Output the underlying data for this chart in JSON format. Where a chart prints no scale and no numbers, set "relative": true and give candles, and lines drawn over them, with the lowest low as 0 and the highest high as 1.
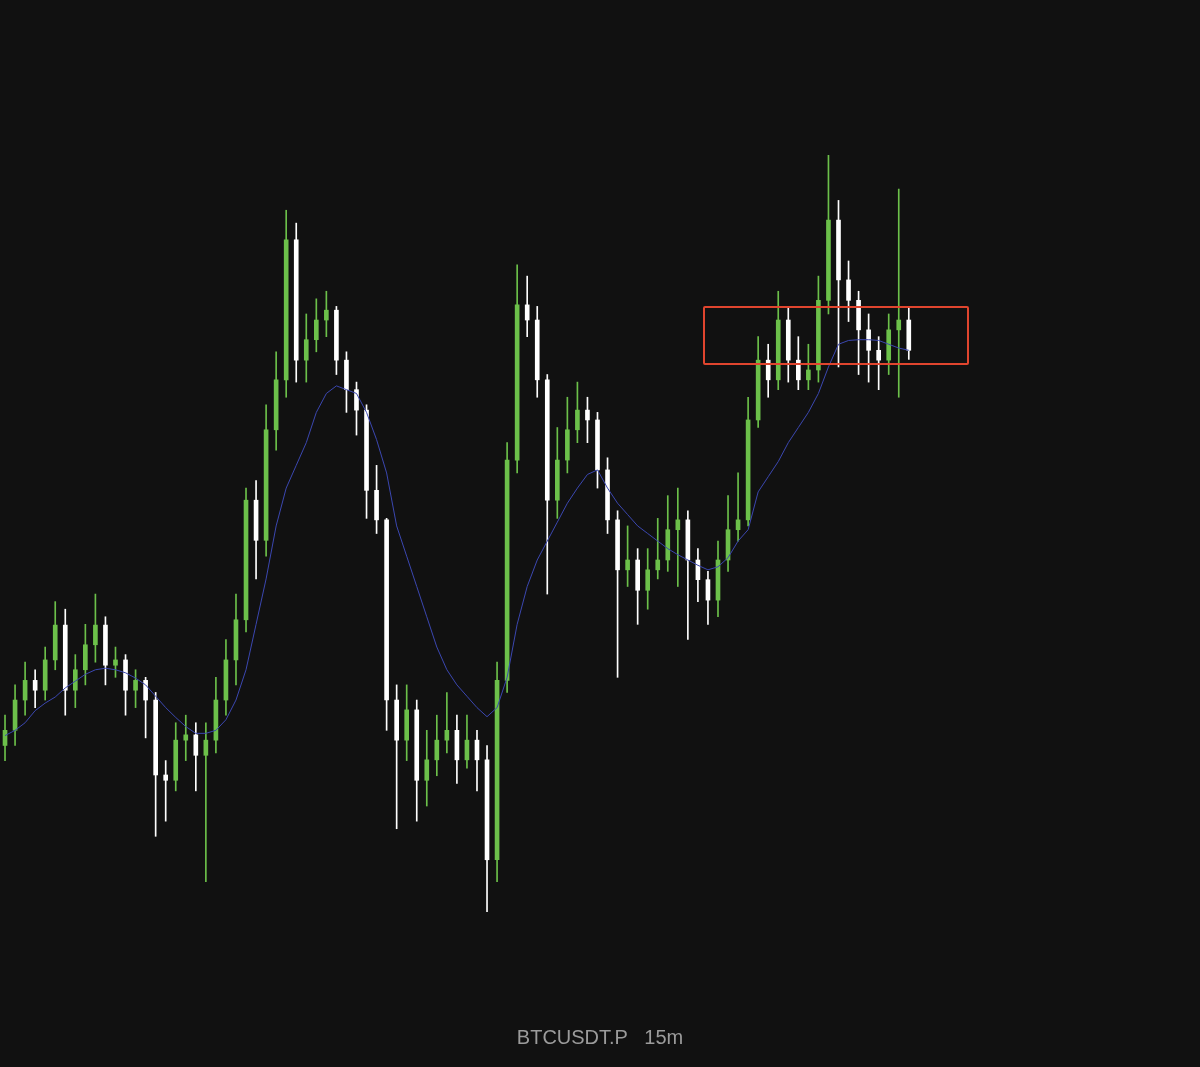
{
  "chart_data": {
    "type": "candlestick",
    "title": "BTCUSDT.P   15m",
    "relative": true,
    "categories": [
      null,
      null,
      null,
      null,
      null,
      null,
      null,
      null,
      null,
      null,
      null,
      null,
      null,
      null,
      null,
      null,
      null,
      null,
      null,
      null,
      null,
      null,
      null,
      null,
      null,
      null,
      null,
      null,
      null,
      null,
      null,
      null,
      null,
      null,
      null,
      null,
      null,
      null,
      null,
      null,
      null,
      null,
      null,
      null,
      null,
      null,
      null,
      null,
      null,
      null,
      null,
      null,
      null,
      null,
      null,
      null,
      null,
      null,
      null,
      null,
      null,
      null,
      null,
      null,
      null,
      null,
      null,
      null,
      null,
      null,
      null,
      null,
      null,
      null,
      null,
      null,
      null,
      null,
      null,
      null,
      null,
      null,
      null,
      null,
      null,
      null,
      null,
      null,
      null,
      null,
      null
    ],
    "ohlc": [
      [
        0.22,
        0.26,
        0.2,
        0.24
      ],
      [
        0.24,
        0.3,
        0.22,
        0.28
      ],
      [
        0.28,
        0.33,
        0.26,
        0.306
      ],
      [
        0.306,
        0.32,
        0.27,
        0.293
      ],
      [
        0.293,
        0.35,
        0.28,
        0.333
      ],
      [
        0.333,
        0.41,
        0.32,
        0.379
      ],
      [
        0.379,
        0.4,
        0.26,
        0.293
      ],
      [
        0.293,
        0.34,
        0.27,
        0.32
      ],
      [
        0.32,
        0.38,
        0.3,
        0.353
      ],
      [
        0.353,
        0.42,
        0.33,
        0.379
      ],
      [
        0.379,
        0.39,
        0.3,
        0.326
      ],
      [
        0.326,
        0.35,
        0.31,
        0.333
      ],
      [
        0.333,
        0.34,
        0.26,
        0.293
      ],
      [
        0.293,
        0.32,
        0.27,
        0.306
      ],
      [
        0.306,
        0.31,
        0.23,
        0.28
      ],
      [
        0.28,
        0.29,
        0.1,
        0.181
      ],
      [
        0.181,
        0.2,
        0.12,
        0.174
      ],
      [
        0.174,
        0.25,
        0.16,
        0.227
      ],
      [
        0.227,
        0.26,
        0.2,
        0.234
      ],
      [
        0.234,
        0.25,
        0.16,
        0.207
      ],
      [
        0.207,
        0.25,
        0.04,
        0.227
      ],
      [
        0.227,
        0.31,
        0.21,
        0.28
      ],
      [
        0.28,
        0.36,
        0.26,
        0.333
      ],
      [
        0.333,
        0.42,
        0.3,
        0.386
      ],
      [
        0.386,
        0.56,
        0.37,
        0.544
      ],
      [
        0.544,
        0.57,
        0.44,
        0.491
      ],
      [
        0.491,
        0.67,
        0.47,
        0.637
      ],
      [
        0.637,
        0.74,
        0.61,
        0.703
      ],
      [
        0.703,
        0.927,
        0.68,
        0.888
      ],
      [
        0.888,
        0.91,
        0.7,
        0.729
      ],
      [
        0.729,
        0.79,
        0.7,
        0.756
      ],
      [
        0.756,
        0.81,
        0.74,
        0.782
      ],
      [
        0.782,
        0.82,
        0.76,
        0.795
      ],
      [
        0.795,
        0.8,
        0.71,
        0.729
      ],
      [
        0.729,
        0.74,
        0.66,
        0.69
      ],
      [
        0.69,
        0.7,
        0.63,
        0.663
      ],
      [
        0.663,
        0.67,
        0.52,
        0.557
      ],
      [
        0.557,
        0.59,
        0.5,
        0.518
      ],
      [
        0.518,
        0.52,
        0.24,
        0.28
      ],
      [
        0.28,
        0.3,
        0.11,
        0.227
      ],
      [
        0.227,
        0.3,
        0.2,
        0.267
      ],
      [
        0.267,
        0.28,
        0.12,
        0.174
      ],
      [
        0.174,
        0.24,
        0.14,
        0.201
      ],
      [
        0.201,
        0.26,
        0.18,
        0.227
      ],
      [
        0.227,
        0.29,
        0.21,
        0.24
      ],
      [
        0.24,
        0.26,
        0.17,
        0.201
      ],
      [
        0.201,
        0.26,
        0.19,
        0.227
      ],
      [
        0.227,
        0.24,
        0.16,
        0.201
      ],
      [
        0.201,
        0.22,
        0,
        0.069
      ],
      [
        0.069,
        0.33,
        0.04,
        0.306
      ],
      [
        0.306,
        0.62,
        0.29,
        0.597
      ],
      [
        0.597,
        0.855,
        0.58,
        0.802
      ],
      [
        0.802,
        0.84,
        0.76,
        0.782
      ],
      [
        0.782,
        0.8,
        0.68,
        0.703
      ],
      [
        0.703,
        0.71,
        0.42,
        0.544
      ],
      [
        0.544,
        0.64,
        0.52,
        0.597
      ],
      [
        0.597,
        0.68,
        0.58,
        0.637
      ],
      [
        0.637,
        0.7,
        0.62,
        0.663
      ],
      [
        0.663,
        0.68,
        0.62,
        0.65
      ],
      [
        0.65,
        0.66,
        0.56,
        0.584
      ],
      [
        0.584,
        0.6,
        0.5,
        0.518
      ],
      [
        0.518,
        0.53,
        0.31,
        0.452
      ],
      [
        0.452,
        0.51,
        0.43,
        0.465
      ],
      [
        0.465,
        0.48,
        0.38,
        0.425
      ],
      [
        0.425,
        0.48,
        0.4,
        0.452
      ],
      [
        0.452,
        0.52,
        0.44,
        0.465
      ],
      [
        0.465,
        0.55,
        0.45,
        0.505
      ],
      [
        0.505,
        0.56,
        0.43,
        0.518
      ],
      [
        0.518,
        0.53,
        0.36,
        0.465
      ],
      [
        0.465,
        0.48,
        0.41,
        0.439
      ],
      [
        0.439,
        0.45,
        0.38,
        0.412
      ],
      [
        0.412,
        0.49,
        0.39,
        0.465
      ],
      [
        0.465,
        0.55,
        0.45,
        0.505
      ],
      [
        0.505,
        0.58,
        0.49,
        0.518
      ],
      [
        0.518,
        0.68,
        0.51,
        0.65
      ],
      [
        0.65,
        0.76,
        0.64,
        0.729
      ],
      [
        0.729,
        0.75,
        0.68,
        0.703
      ],
      [
        0.703,
        0.82,
        0.69,
        0.782
      ],
      [
        0.782,
        0.8,
        0.7,
        0.729
      ],
      [
        0.729,
        0.76,
        0.69,
        0.703
      ],
      [
        0.703,
        0.75,
        0.69,
        0.716
      ],
      [
        0.716,
        0.84,
        0.7,
        0.808
      ],
      [
        0.808,
        1,
        0.79,
        0.914
      ],
      [
        0.914,
        0.94,
        0.72,
        0.835
      ],
      [
        0.835,
        0.86,
        0.78,
        0.808
      ],
      [
        0.808,
        0.82,
        0.71,
        0.769
      ],
      [
        0.769,
        0.79,
        0.7,
        0.742
      ],
      [
        0.742,
        0.76,
        0.69,
        0.729
      ],
      [
        0.729,
        0.79,
        0.71,
        0.769
      ],
      [
        0.769,
        0.955,
        0.68,
        0.782
      ],
      [
        0.782,
        0.8,
        0.73,
        0.742
      ]
    ],
    "colors": [
      "#6cc04a",
      "#6cc04a",
      "#6cc04a",
      "#ffffff",
      "#6cc04a",
      "#6cc04a",
      "#ffffff",
      "#6cc04a",
      "#6cc04a",
      "#6cc04a",
      "#ffffff",
      "#6cc04a",
      "#ffffff",
      "#6cc04a",
      "#ffffff",
      "#ffffff",
      "#ffffff",
      "#6cc04a",
      "#6cc04a",
      "#ffffff",
      "#6cc04a",
      "#6cc04a",
      "#6cc04a",
      "#6cc04a",
      "#6cc04a",
      "#ffffff",
      "#6cc04a",
      "#6cc04a",
      "#6cc04a",
      "#ffffff",
      "#6cc04a",
      "#6cc04a",
      "#6cc04a",
      "#ffffff",
      "#ffffff",
      "#ffffff",
      "#ffffff",
      "#ffffff",
      "#ffffff",
      "#ffffff",
      "#6cc04a",
      "#ffffff",
      "#6cc04a",
      "#6cc04a",
      "#6cc04a",
      "#ffffff",
      "#6cc04a",
      "#ffffff",
      "#ffffff",
      "#6cc04a",
      "#6cc04a",
      "#6cc04a",
      "#ffffff",
      "#ffffff",
      "#ffffff",
      "#6cc04a",
      "#6cc04a",
      "#6cc04a",
      "#ffffff",
      "#ffffff",
      "#ffffff",
      "#ffffff",
      "#6cc04a",
      "#ffffff",
      "#6cc04a",
      "#6cc04a",
      "#6cc04a",
      "#6cc04a",
      "#ffffff",
      "#ffffff",
      "#ffffff",
      "#6cc04a",
      "#6cc04a",
      "#6cc04a",
      "#6cc04a",
      "#6cc04a",
      "#ffffff",
      "#6cc04a",
      "#ffffff",
      "#ffffff",
      "#6cc04a",
      "#6cc04a",
      "#6cc04a",
      "#ffffff",
      "#ffffff",
      "#ffffff",
      "#ffffff",
      "#ffffff",
      "#6cc04a",
      "#6cc04a",
      "#ffffff"
    ],
    "series": [
      {
        "type": "line",
        "color": "#3b47b0",
        "values": [
          0.233,
          0.24,
          0.25,
          0.266,
          0.276,
          0.284,
          0.296,
          0.305,
          0.314,
          0.32,
          0.322,
          0.32,
          0.316,
          0.309,
          0.3,
          0.285,
          0.27,
          0.257,
          0.245,
          0.236,
          0.236,
          0.24,
          0.254,
          0.28,
          0.32,
          0.38,
          0.44,
          0.51,
          0.56,
          0.59,
          0.62,
          0.66,
          0.685,
          0.695,
          0.69,
          0.685,
          0.66,
          0.624,
          0.58,
          0.51,
          0.47,
          0.43,
          0.39,
          0.35,
          0.32,
          0.3,
          0.285,
          0.27,
          0.258,
          0.27,
          0.31,
          0.38,
          0.43,
          0.465,
          0.49,
          0.515,
          0.54,
          0.56,
          0.578,
          0.584,
          0.56,
          0.54,
          0.525,
          0.51,
          0.5,
          0.49,
          0.48,
          0.472,
          0.465,
          0.458,
          0.452,
          0.456,
          0.468,
          0.49,
          0.505,
          0.555,
          0.575,
          0.595,
          0.62,
          0.64,
          0.66,
          0.685,
          0.72,
          0.75,
          0.755,
          0.756,
          0.756,
          0.755,
          0.75,
          0.745,
          0.742
        ]
      }
    ]
  }
}
